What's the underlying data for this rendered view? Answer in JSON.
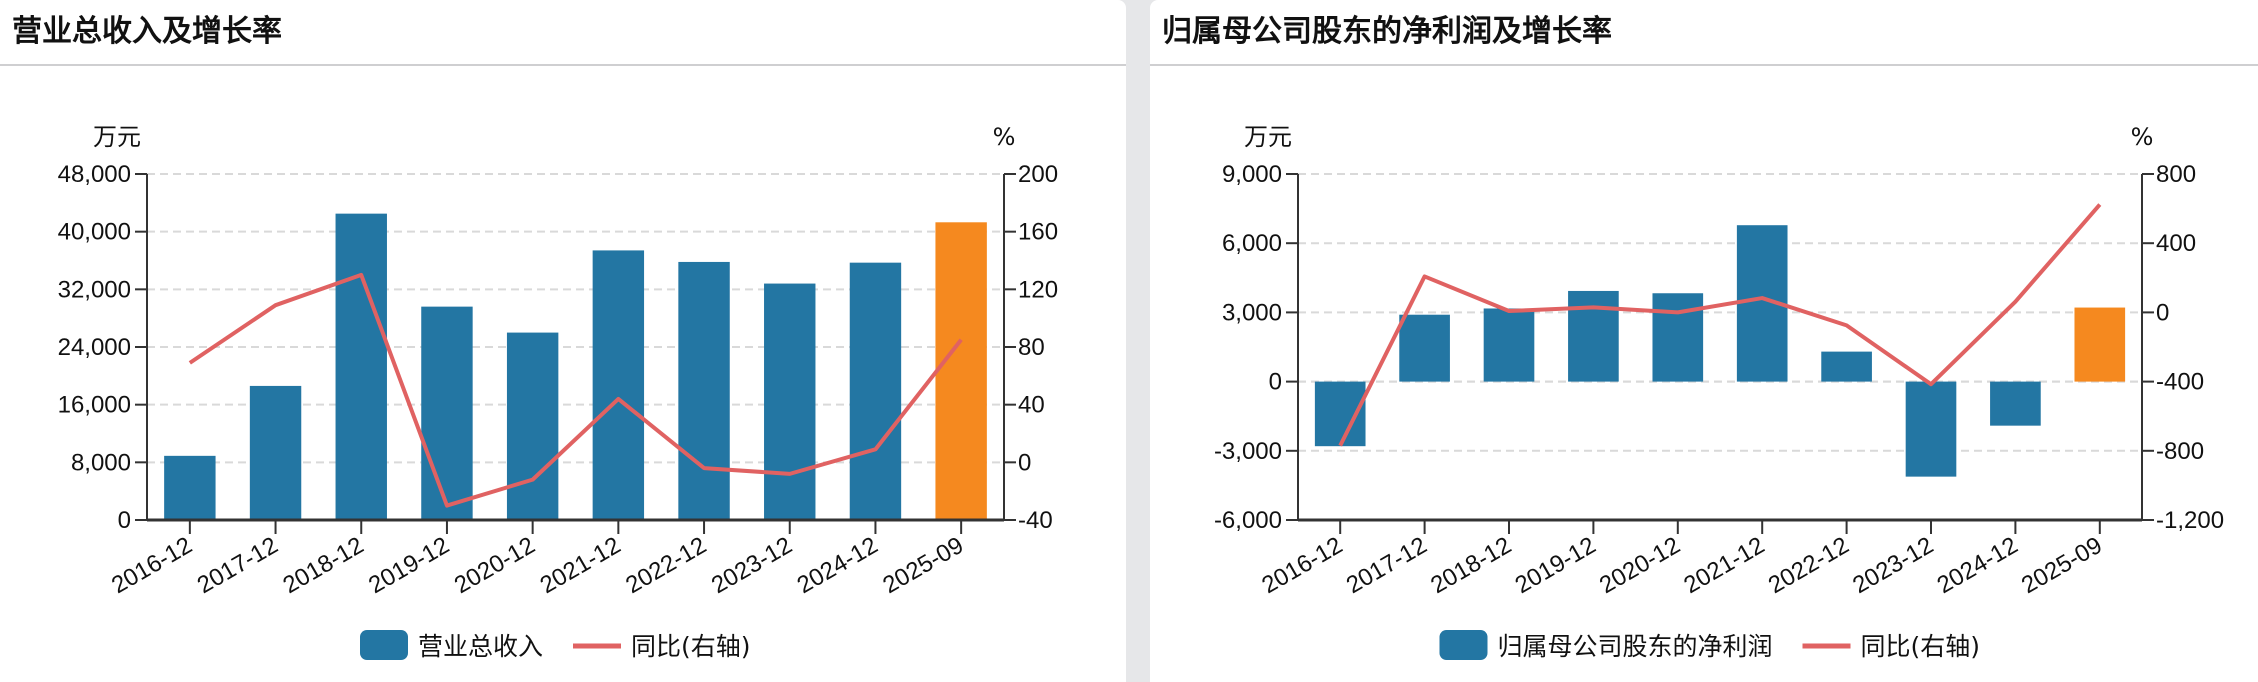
{
  "panels": [
    {
      "title": "营业总收入及增长率"
    },
    {
      "title": "归属母公司股东的净利润及增长率"
    }
  ],
  "colors": {
    "bar": "#2376a3",
    "bar_highlight": "#f5891f",
    "line": "#e06262",
    "grid": "#d9d9d9",
    "axis": "#333333"
  },
  "chart_data": [
    {
      "type": "bar",
      "title": "营业总收入及增长率",
      "categories": [
        "2016-12",
        "2017-12",
        "2018-12",
        "2019-12",
        "2020-12",
        "2021-12",
        "2022-12",
        "2023-12",
        "2024-12",
        "2025-09"
      ],
      "series": [
        {
          "name": "营业总收入",
          "axis": "left",
          "type": "bar",
          "values": [
            8900,
            18600,
            42500,
            29600,
            26000,
            37400,
            35800,
            32800,
            35700,
            41300
          ]
        },
        {
          "name": "同比(右轴)",
          "axis": "right",
          "type": "line",
          "values": [
            69,
            109,
            130,
            -30,
            -12,
            44,
            -4,
            -8,
            9,
            85
          ]
        }
      ],
      "ylabel_left": "万元",
      "ylabel_right": "%",
      "ylim_left": [
        0,
        48000
      ],
      "ylim_right": [
        -40,
        200
      ],
      "yticks_left": [
        "0",
        "8,000",
        "16,000",
        "24,000",
        "32,000",
        "40,000",
        "48,000"
      ],
      "yticks_right": [
        "-40",
        "0",
        "40",
        "80",
        "120",
        "160",
        "200"
      ],
      "grid": true,
      "legend_position": "bottom",
      "highlight_last": true
    },
    {
      "type": "bar",
      "title": "归属母公司股东的净利润及增长率",
      "categories": [
        "2016-12",
        "2017-12",
        "2018-12",
        "2019-12",
        "2020-12",
        "2021-12",
        "2022-12",
        "2023-12",
        "2024-12",
        "2025-09"
      ],
      "series": [
        {
          "name": "归属母公司股东的净利润",
          "axis": "left",
          "type": "bar",
          "values": [
            -2800,
            2900,
            3170,
            3930,
            3830,
            6780,
            1300,
            -4120,
            -1910,
            3210
          ]
        },
        {
          "name": "同比(右轴)",
          "axis": "right",
          "type": "line",
          "values": [
            -770,
            208,
            8,
            29,
            0,
            83,
            -75,
            -415,
            62,
            623
          ]
        }
      ],
      "ylabel_left": "万元",
      "ylabel_right": "%",
      "ylim_left": [
        -6000,
        9000
      ],
      "ylim_right": [
        -1200,
        800
      ],
      "yticks_left": [
        "-6,000",
        "-3,000",
        "0",
        "3,000",
        "6,000",
        "9,000"
      ],
      "yticks_right": [
        "-1,200",
        "-800",
        "-400",
        "0",
        "400",
        "800"
      ],
      "grid": true,
      "legend_position": "bottom",
      "highlight_last": true
    }
  ]
}
